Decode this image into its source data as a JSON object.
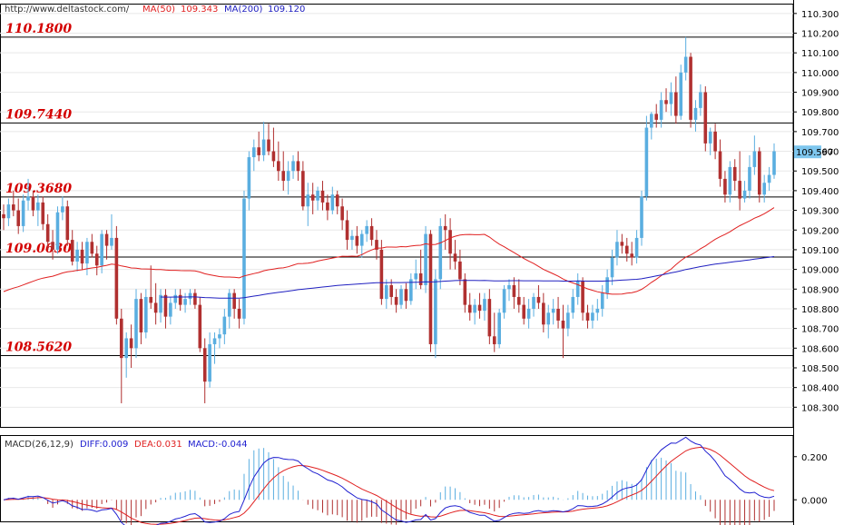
{
  "header": {
    "url": "http://www.deltastock.com/",
    "ma50_label": "MA(50)",
    "ma50_value": "109.343",
    "ma200_label": "MA(200)",
    "ma200_value": "109.120"
  },
  "macd_header": {
    "macd_params": "MACD(26,12,9)",
    "diff_label": "DIFF:0.009",
    "dea_label": "DEA:0.031",
    "macd_label": "MACD:-0.044"
  },
  "colors": {
    "bull": "#5aaee0",
    "bear": "#b03030",
    "ma50": "#e02020",
    "ma200": "#2020c0",
    "level_text": "#d40000",
    "price_badge": "#7ec6ee",
    "diff_line": "#2020d0",
    "dea_line": "#e02020"
  },
  "chart_data": {
    "type": "candlestick",
    "ylim": [
      108.2,
      110.35
    ],
    "y_ticks": [
      "110.300",
      "110.200",
      "110.100",
      "110.000",
      "109.900",
      "109.800",
      "109.700",
      "109.600",
      "109.500",
      "109.400",
      "109.300",
      "109.200",
      "109.100",
      "109.000",
      "108.900",
      "108.800",
      "108.700",
      "108.600",
      "108.500",
      "108.400",
      "108.300"
    ],
    "current_price": "109.597",
    "levels": [
      {
        "label": "110.1800",
        "value": 110.18
      },
      {
        "label": "109.7440",
        "value": 109.744
      },
      {
        "label": "109.3680",
        "value": 109.368
      },
      {
        "label": "109.0630",
        "value": 109.063
      },
      {
        "label": "108.5620",
        "value": 108.562
      }
    ],
    "candles": [
      [
        109.28,
        109.33,
        109.2,
        109.26
      ],
      [
        109.26,
        109.36,
        109.22,
        109.33
      ],
      [
        109.33,
        109.4,
        109.27,
        109.3
      ],
      [
        109.3,
        109.36,
        109.18,
        109.22
      ],
      [
        109.22,
        109.38,
        109.19,
        109.35
      ],
      [
        109.35,
        109.46,
        109.3,
        109.37
      ],
      [
        109.37,
        109.4,
        109.27,
        109.3
      ],
      [
        109.3,
        109.38,
        109.22,
        109.34
      ],
      [
        109.34,
        109.37,
        109.2,
        109.23
      ],
      [
        109.23,
        109.28,
        109.1,
        109.14
      ],
      [
        109.14,
        109.2,
        109.05,
        109.1
      ],
      [
        109.1,
        109.32,
        109.08,
        109.29
      ],
      [
        109.29,
        109.37,
        109.25,
        109.32
      ],
      [
        109.32,
        109.35,
        109.12,
        109.15
      ],
      [
        109.15,
        109.2,
        109.02,
        109.04
      ],
      [
        109.04,
        109.14,
        108.99,
        109.1
      ],
      [
        109.1,
        109.14,
        109.0,
        109.03
      ],
      [
        109.03,
        109.16,
        108.97,
        109.14
      ],
      [
        109.14,
        109.18,
        109.06,
        109.08
      ],
      [
        109.08,
        109.12,
        108.97,
        109.02
      ],
      [
        109.02,
        109.2,
        108.98,
        109.18
      ],
      [
        109.18,
        109.2,
        109.05,
        109.12
      ],
      [
        109.12,
        109.28,
        109.1,
        109.16
      ],
      [
        109.16,
        109.22,
        108.72,
        108.75
      ],
      [
        108.75,
        108.8,
        108.32,
        108.55
      ],
      [
        108.55,
        108.68,
        108.45,
        108.65
      ],
      [
        108.65,
        108.72,
        108.5,
        108.6
      ],
      [
        108.6,
        108.9,
        108.55,
        108.85
      ],
      [
        108.85,
        108.88,
        108.62,
        108.68
      ],
      [
        108.68,
        108.9,
        108.65,
        108.86
      ],
      [
        108.86,
        109.02,
        108.8,
        108.83
      ],
      [
        108.83,
        108.93,
        108.72,
        108.78
      ],
      [
        108.78,
        108.9,
        108.73,
        108.87
      ],
      [
        108.87,
        108.9,
        108.7,
        108.76
      ],
      [
        108.76,
        108.86,
        108.72,
        108.83
      ],
      [
        108.83,
        108.9,
        108.8,
        108.87
      ],
      [
        108.87,
        108.9,
        108.79,
        108.82
      ],
      [
        108.82,
        108.88,
        108.78,
        108.85
      ],
      [
        108.85,
        108.9,
        108.82,
        108.88
      ],
      [
        108.88,
        108.9,
        108.8,
        108.82
      ],
      [
        108.82,
        108.86,
        108.58,
        108.6
      ],
      [
        108.6,
        108.65,
        108.32,
        108.43
      ],
      [
        108.43,
        108.68,
        108.4,
        108.62
      ],
      [
        108.62,
        108.68,
        108.52,
        108.65
      ],
      [
        108.65,
        108.7,
        108.6,
        108.67
      ],
      [
        108.67,
        108.8,
        108.62,
        108.76
      ],
      [
        108.76,
        108.9,
        108.7,
        108.88
      ],
      [
        108.88,
        108.9,
        108.75,
        108.8
      ],
      [
        108.8,
        108.85,
        108.7,
        108.75
      ],
      [
        108.75,
        109.4,
        108.72,
        109.36
      ],
      [
        109.36,
        109.6,
        109.3,
        109.57
      ],
      [
        109.57,
        109.66,
        109.5,
        109.62
      ],
      [
        109.62,
        109.7,
        109.55,
        109.58
      ],
      [
        109.58,
        109.75,
        109.55,
        109.66
      ],
      [
        109.66,
        109.74,
        109.58,
        109.6
      ],
      [
        109.6,
        109.72,
        109.52,
        109.55
      ],
      [
        109.55,
        109.65,
        109.45,
        109.5
      ],
      [
        109.5,
        109.6,
        109.4,
        109.45
      ],
      [
        109.45,
        109.55,
        109.38,
        109.5
      ],
      [
        109.5,
        109.58,
        109.46,
        109.55
      ],
      [
        109.55,
        109.6,
        109.45,
        109.5
      ],
      [
        109.5,
        109.55,
        109.3,
        109.32
      ],
      [
        109.32,
        109.44,
        109.22,
        109.38
      ],
      [
        109.38,
        109.44,
        109.28,
        109.35
      ],
      [
        109.35,
        109.42,
        109.3,
        109.4
      ],
      [
        109.4,
        109.45,
        109.3,
        109.34
      ],
      [
        109.34,
        109.38,
        109.25,
        109.3
      ],
      [
        109.3,
        109.42,
        109.28,
        109.38
      ],
      [
        109.38,
        109.4,
        109.28,
        109.32
      ],
      [
        109.32,
        109.36,
        109.2,
        109.25
      ],
      [
        109.25,
        109.3,
        109.1,
        109.15
      ],
      [
        109.15,
        109.2,
        109.1,
        109.17
      ],
      [
        109.17,
        109.22,
        109.08,
        109.12
      ],
      [
        109.12,
        109.2,
        109.06,
        109.18
      ],
      [
        109.18,
        109.25,
        109.14,
        109.22
      ],
      [
        109.22,
        109.26,
        109.12,
        109.15
      ],
      [
        109.15,
        109.2,
        109.05,
        109.1
      ],
      [
        109.1,
        109.15,
        108.82,
        108.85
      ],
      [
        108.85,
        108.95,
        108.8,
        108.92
      ],
      [
        108.92,
        108.95,
        108.82,
        108.86
      ],
      [
        108.86,
        108.9,
        108.78,
        108.82
      ],
      [
        108.82,
        108.92,
        108.8,
        108.9
      ],
      [
        108.9,
        108.93,
        108.8,
        108.84
      ],
      [
        108.84,
        108.98,
        108.82,
        108.95
      ],
      [
        108.95,
        109.05,
        108.9,
        108.98
      ],
      [
        108.98,
        109.1,
        108.9,
        108.92
      ],
      [
        108.92,
        109.22,
        108.88,
        109.18
      ],
      [
        109.18,
        109.2,
        108.58,
        108.62
      ],
      [
        108.62,
        109.0,
        108.55,
        108.95
      ],
      [
        108.95,
        109.26,
        108.9,
        109.22
      ],
      [
        109.22,
        109.28,
        109.1,
        109.2
      ],
      [
        109.2,
        109.26,
        109.0,
        109.08
      ],
      [
        109.08,
        109.15,
        109.0,
        109.04
      ],
      [
        109.04,
        109.1,
        108.92,
        108.95
      ],
      [
        108.95,
        108.98,
        108.78,
        108.82
      ],
      [
        108.82,
        108.88,
        108.74,
        108.78
      ],
      [
        108.78,
        108.85,
        108.72,
        108.82
      ],
      [
        108.82,
        108.88,
        108.75,
        108.79
      ],
      [
        108.79,
        108.88,
        108.74,
        108.85
      ],
      [
        108.85,
        108.9,
        108.62,
        108.66
      ],
      [
        108.66,
        108.78,
        108.58,
        108.62
      ],
      [
        108.62,
        108.8,
        108.6,
        108.78
      ],
      [
        108.78,
        108.92,
        108.75,
        108.9
      ],
      [
        108.9,
        108.95,
        108.84,
        108.92
      ],
      [
        108.92,
        108.96,
        108.8,
        108.86
      ],
      [
        108.86,
        108.95,
        108.78,
        108.82
      ],
      [
        108.82,
        108.86,
        108.72,
        108.75
      ],
      [
        108.75,
        108.85,
        108.7,
        108.8
      ],
      [
        108.8,
        108.88,
        108.76,
        108.86
      ],
      [
        108.86,
        108.92,
        108.8,
        108.83
      ],
      [
        108.83,
        108.88,
        108.68,
        108.72
      ],
      [
        108.72,
        108.82,
        108.65,
        108.78
      ],
      [
        108.78,
        108.85,
        108.72,
        108.8
      ],
      [
        108.8,
        108.86,
        108.7,
        108.74
      ],
      [
        108.74,
        108.82,
        108.55,
        108.7
      ],
      [
        108.7,
        108.82,
        108.66,
        108.78
      ],
      [
        108.78,
        108.9,
        108.75,
        108.86
      ],
      [
        108.86,
        108.98,
        108.82,
        108.94
      ],
      [
        108.94,
        108.96,
        108.74,
        108.78
      ],
      [
        108.78,
        108.82,
        108.7,
        108.74
      ],
      [
        108.74,
        108.82,
        108.7,
        108.78
      ],
      [
        108.78,
        108.85,
        108.74,
        108.8
      ],
      [
        108.8,
        108.92,
        108.76,
        108.88
      ],
      [
        108.88,
        109.0,
        108.85,
        108.96
      ],
      [
        108.96,
        109.1,
        108.92,
        109.06
      ],
      [
        109.06,
        109.2,
        109.02,
        109.14
      ],
      [
        109.14,
        109.18,
        109.08,
        109.12
      ],
      [
        109.12,
        109.16,
        109.04,
        109.08
      ],
      [
        109.08,
        109.14,
        109.02,
        109.06
      ],
      [
        109.06,
        109.2,
        109.03,
        109.16
      ],
      [
        109.16,
        109.4,
        109.12,
        109.37
      ],
      [
        109.37,
        109.78,
        109.35,
        109.72
      ],
      [
        109.72,
        109.8,
        109.66,
        109.79
      ],
      [
        109.79,
        109.84,
        109.72,
        109.76
      ],
      [
        109.76,
        109.9,
        109.72,
        109.86
      ],
      [
        109.86,
        109.92,
        109.8,
        109.84
      ],
      [
        109.84,
        109.95,
        109.78,
        109.9
      ],
      [
        109.9,
        109.98,
        109.74,
        109.78
      ],
      [
        109.78,
        110.04,
        109.76,
        110.0
      ],
      [
        110.0,
        110.18,
        109.96,
        110.08
      ],
      [
        110.08,
        110.1,
        109.72,
        109.76
      ],
      [
        109.76,
        109.86,
        109.7,
        109.82
      ],
      [
        109.82,
        109.94,
        109.78,
        109.9
      ],
      [
        109.9,
        109.93,
        109.6,
        109.64
      ],
      [
        109.64,
        109.72,
        109.58,
        109.7
      ],
      [
        109.7,
        109.74,
        109.56,
        109.6
      ],
      [
        109.6,
        109.66,
        109.42,
        109.46
      ],
      [
        109.46,
        109.5,
        109.34,
        109.38
      ],
      [
        109.38,
        109.55,
        109.34,
        109.52
      ],
      [
        109.52,
        109.56,
        109.4,
        109.45
      ],
      [
        109.45,
        109.6,
        109.3,
        109.36
      ],
      [
        109.36,
        109.45,
        109.34,
        109.4
      ],
      [
        109.4,
        109.58,
        109.36,
        109.52
      ],
      [
        109.52,
        109.68,
        109.48,
        109.6
      ],
      [
        109.6,
        109.62,
        109.34,
        109.38
      ],
      [
        109.38,
        109.48,
        109.34,
        109.44
      ],
      [
        109.44,
        109.52,
        109.4,
        109.48
      ],
      [
        109.48,
        109.64,
        109.46,
        109.6
      ]
    ],
    "macd_panel": {
      "ylim": [
        -0.1,
        0.3
      ],
      "y_ticks": [
        "0.200",
        "0.000"
      ]
    }
  }
}
